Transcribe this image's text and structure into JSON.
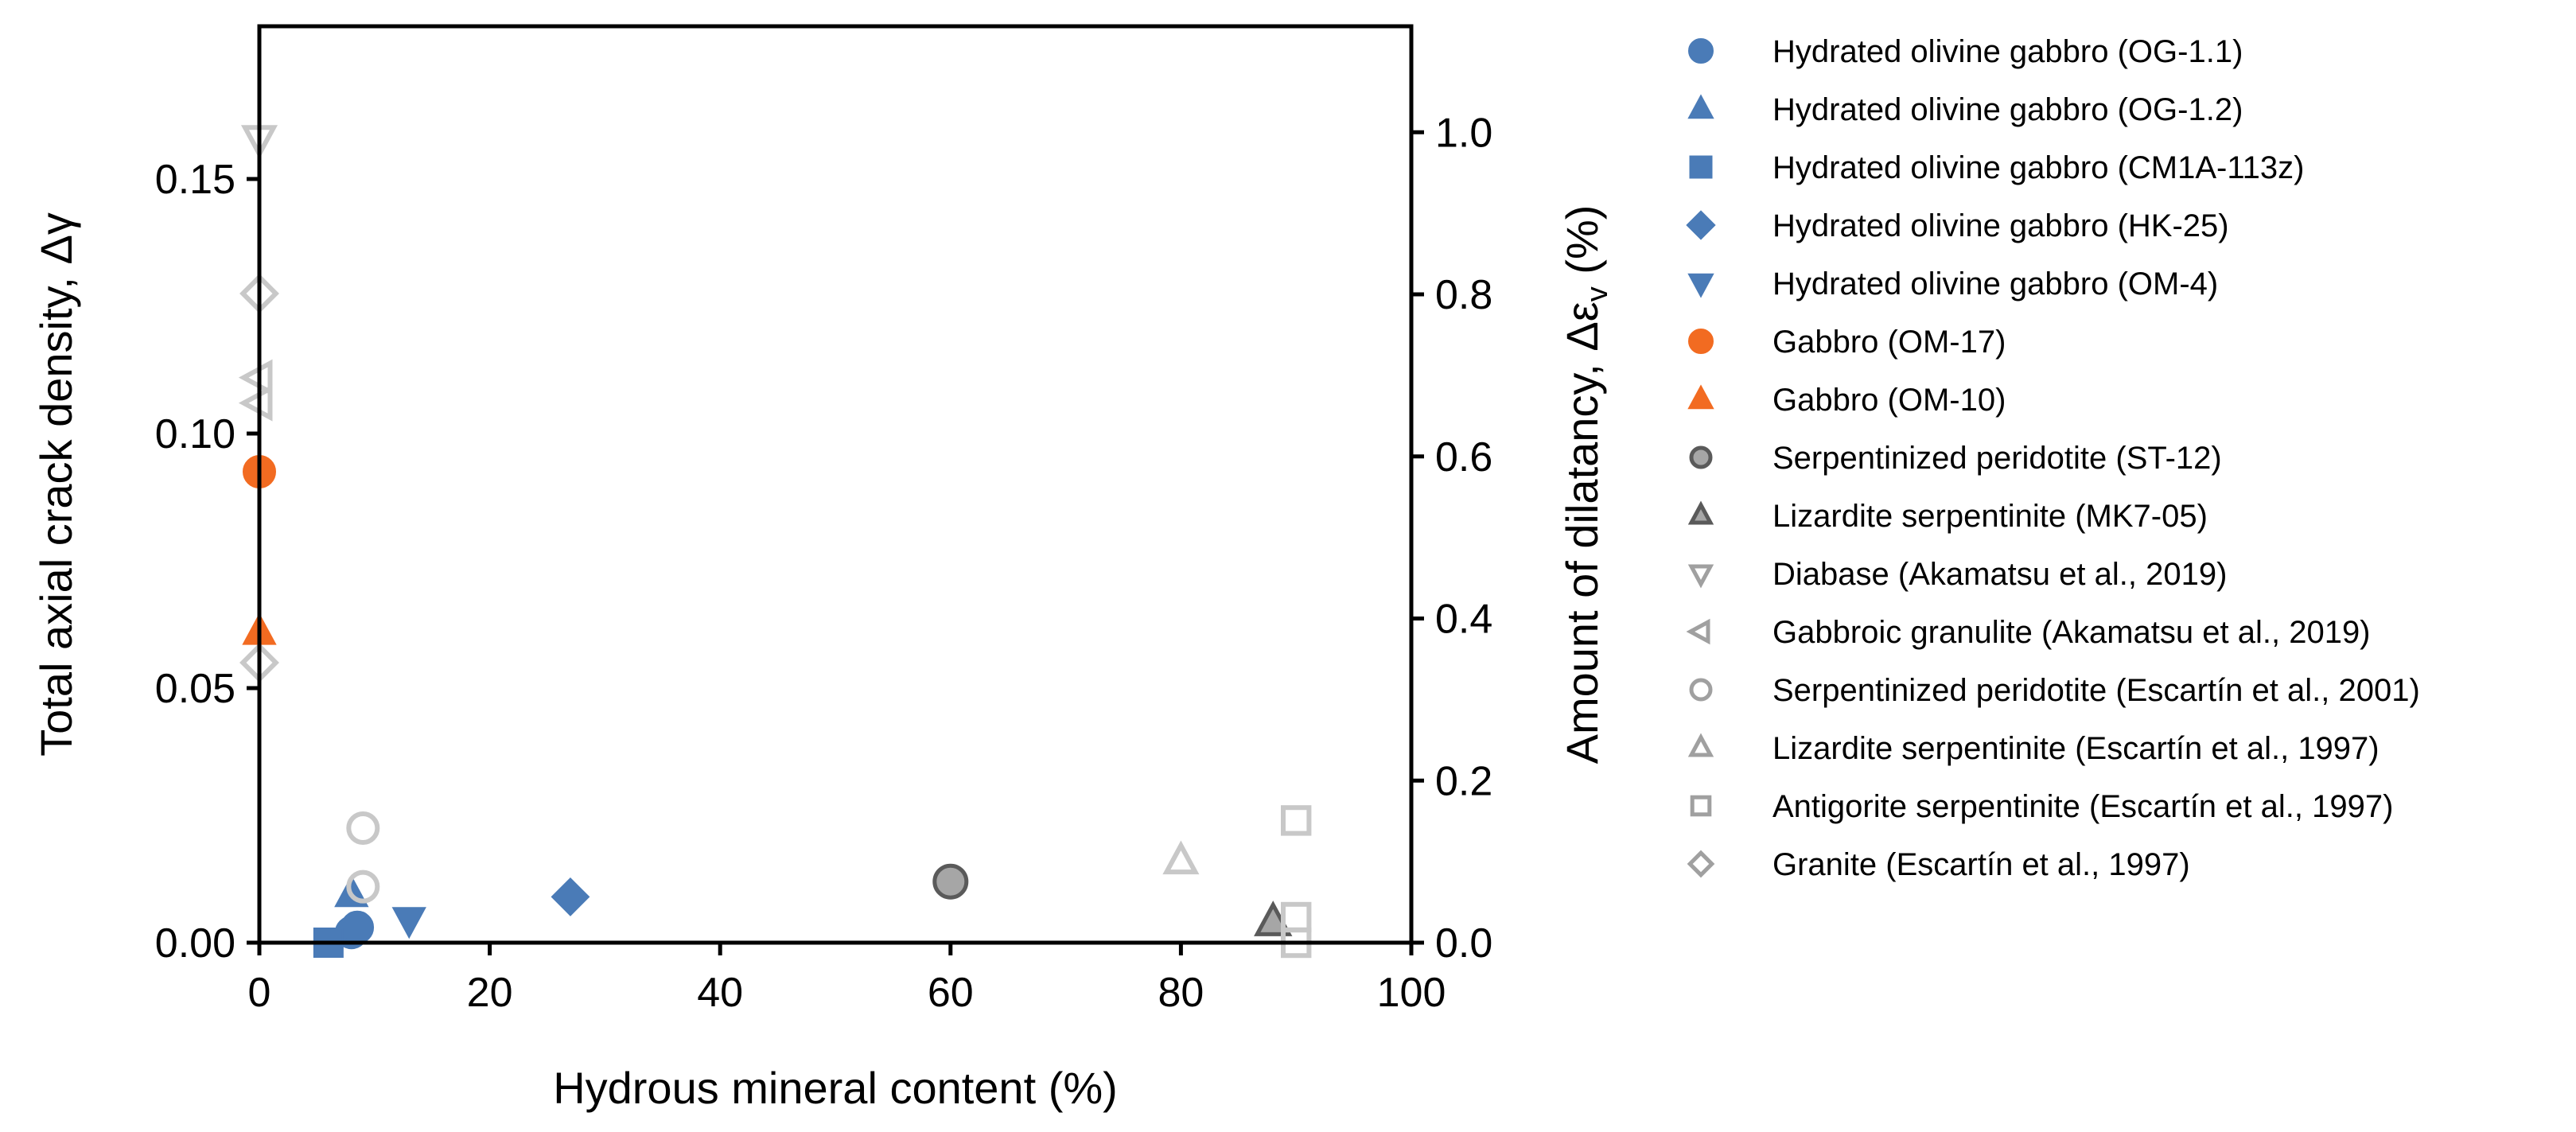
{
  "chart_data": {
    "type": "scatter",
    "xlabel": "Hydrous mineral content (%)",
    "ylabel_left": "Total axial crack density, Δγ",
    "ylabel_right": "Amount of dilatancy, Δε",
    "ylabel_right_sub": "v",
    "ylabel_right_unit": " (%)",
    "xlim": [
      0,
      100
    ],
    "ylim_left": [
      0,
      0.18
    ],
    "ylim_right": [
      0,
      1.1308
    ],
    "x_ticks": [
      "0",
      "20",
      "40",
      "60",
      "80",
      "100"
    ],
    "y_left_ticks": [
      "0.00",
      "0.05",
      "0.10",
      "0.15"
    ],
    "y_right_ticks": [
      "0.0",
      "0.2",
      "0.4",
      "0.6",
      "0.8",
      "1.0"
    ],
    "colors": {
      "blue": "#4a7bb7",
      "orange": "#f26b21",
      "gray_fill": "#a6a6a6",
      "gray_edge": "#5a5a5a",
      "light_gray": "#c8c8c8"
    },
    "series": [
      {
        "name": "Hydrated olivine gabbro (OG-1.1)",
        "marker": "circle",
        "style": "blue",
        "x": [
          8,
          8.5
        ],
        "y": [
          0.002,
          0.003
        ]
      },
      {
        "name": "Hydrated olivine gabbro (OG-1.2)",
        "marker": "triangle-up",
        "style": "blue",
        "x": [
          8
        ],
        "y": [
          0.0095
        ]
      },
      {
        "name": "Hydrated olivine gabbro (CM1A-113z)",
        "marker": "square",
        "style": "blue",
        "x": [
          6
        ],
        "y": [
          0.0
        ]
      },
      {
        "name": "Hydrated olivine gabbro (HK-25)",
        "marker": "diamond",
        "style": "blue",
        "x": [
          27
        ],
        "y": [
          0.009
        ]
      },
      {
        "name": "Hydrated olivine gabbro (OM-4)",
        "marker": "triangle-down",
        "style": "blue",
        "x": [
          13
        ],
        "y": [
          0.0045
        ]
      },
      {
        "name": "Gabbro (OM-17)",
        "marker": "circle",
        "style": "orange",
        "x": [
          0
        ],
        "y": [
          0.0925
        ]
      },
      {
        "name": "Gabbro (OM-10)",
        "marker": "triangle-up",
        "style": "orange",
        "x": [
          0
        ],
        "y": [
          0.061
        ]
      },
      {
        "name": "Serpentinized peridotite (ST-12)",
        "marker": "circle",
        "style": "gray",
        "x": [
          60
        ],
        "y": [
          0.012
        ]
      },
      {
        "name": "Lizardite serpentinite (MK7-05)",
        "marker": "triangle-up",
        "style": "gray",
        "x": [
          88
        ],
        "y": [
          0.004
        ]
      },
      {
        "name": "Diabase (Akamatsu et al., 2019)",
        "marker": "triangle-down",
        "style": "open",
        "x": [
          0
        ],
        "y": [
          0.158
        ]
      },
      {
        "name": "Gabbroic granulite (Akamatsu et al., 2019)",
        "marker": "triangle-left",
        "style": "open",
        "x": [
          0,
          0
        ],
        "y": [
          0.111,
          0.106
        ]
      },
      {
        "name": "Serpentinized peridotite (Escartín et al., 2001)",
        "marker": "circle",
        "style": "open",
        "x": [
          9,
          9
        ],
        "y": [
          0.0225,
          0.011
        ]
      },
      {
        "name": "Lizardite serpentinite (Escartín et al., 1997)",
        "marker": "triangle-up",
        "style": "open",
        "x": [
          80
        ],
        "y": [
          0.016
        ]
      },
      {
        "name": "Antigorite serpentinite (Escartín et al., 1997)",
        "marker": "square",
        "style": "open",
        "x": [
          90,
          90,
          90
        ],
        "y": [
          0.024,
          0.005,
          0.0
        ]
      },
      {
        "name": "Granite (Escartín et al., 1997)",
        "marker": "diamond",
        "style": "open",
        "x": [
          0,
          0
        ],
        "y": [
          0.1275,
          0.055
        ]
      }
    ]
  }
}
